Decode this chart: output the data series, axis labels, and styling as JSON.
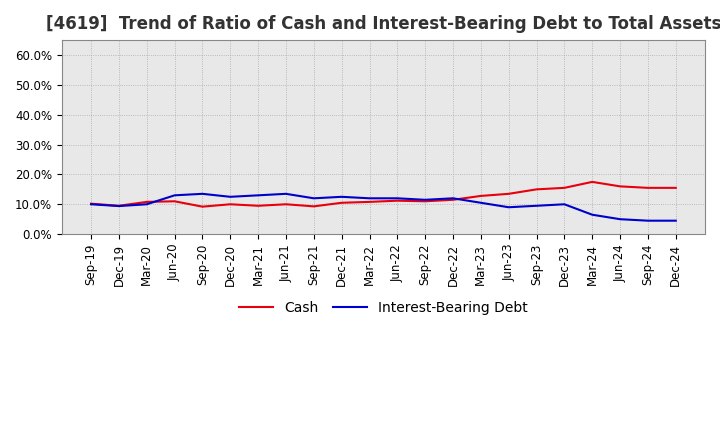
{
  "title": "[4619]  Trend of Ratio of Cash and Interest-Bearing Debt to Total Assets",
  "x_labels": [
    "Sep-19",
    "Dec-19",
    "Mar-20",
    "Jun-20",
    "Sep-20",
    "Dec-20",
    "Mar-21",
    "Jun-21",
    "Sep-21",
    "Dec-21",
    "Mar-22",
    "Jun-22",
    "Sep-22",
    "Dec-22",
    "Mar-23",
    "Jun-23",
    "Sep-23",
    "Dec-23",
    "Mar-24",
    "Jun-24",
    "Sep-24",
    "Dec-24"
  ],
  "cash": [
    10.2,
    9.5,
    10.8,
    11.0,
    9.2,
    10.0,
    9.5,
    10.0,
    9.3,
    10.5,
    10.8,
    11.2,
    11.0,
    11.5,
    12.8,
    13.5,
    15.0,
    15.5,
    17.5,
    16.0,
    15.5,
    15.5
  ],
  "ibd": [
    10.0,
    9.4,
    10.0,
    13.0,
    13.5,
    12.5,
    13.0,
    13.5,
    12.0,
    12.5,
    12.0,
    12.0,
    11.5,
    12.0,
    10.5,
    9.0,
    9.5,
    10.0,
    6.5,
    5.0,
    4.5,
    4.5
  ],
  "cash_color": "#e8000d",
  "ibd_color": "#0000cc",
  "background_color": "#ffffff",
  "plot_bg_color": "#e8e8e8",
  "ylim_max": 65,
  "yticks": [
    0,
    10,
    20,
    30,
    40,
    50,
    60
  ],
  "ytick_labels": [
    "0.0%",
    "10.0%",
    "20.0%",
    "30.0%",
    "40.0%",
    "50.0%",
    "60.0%"
  ],
  "legend_cash": "Cash",
  "legend_ibd": "Interest-Bearing Debt",
  "grid_color": "#aaaaaa",
  "title_fontsize": 12,
  "tick_fontsize": 8.5,
  "legend_fontsize": 10
}
